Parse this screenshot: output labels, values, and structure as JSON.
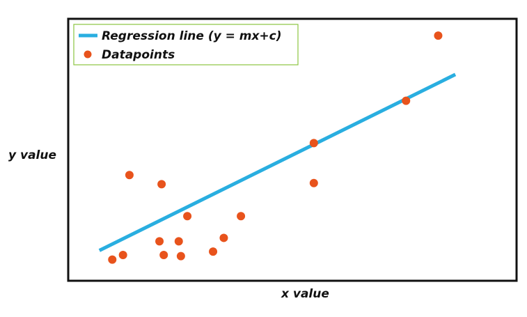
{
  "chart_data": {
    "type": "scatter",
    "title": "",
    "xlabel": "x value",
    "ylabel": "y value",
    "xlim": [
      0,
      100
    ],
    "ylim": [
      0,
      100
    ],
    "grid": false,
    "legend_position": "top-left",
    "series": [
      {
        "name": "Datapoints",
        "kind": "scatter",
        "color": "#e8531c",
        "points": [
          {
            "x": 8,
            "y": 5
          },
          {
            "x": 10.5,
            "y": 7
          },
          {
            "x": 12,
            "y": 42
          },
          {
            "x": 19,
            "y": 13
          },
          {
            "x": 19.5,
            "y": 38
          },
          {
            "x": 20,
            "y": 7
          },
          {
            "x": 23.5,
            "y": 13
          },
          {
            "x": 24,
            "y": 6.5
          },
          {
            "x": 25.5,
            "y": 24
          },
          {
            "x": 31.5,
            "y": 8.5
          },
          {
            "x": 34,
            "y": 14.5
          },
          {
            "x": 38,
            "y": 24
          },
          {
            "x": 55,
            "y": 38.5
          },
          {
            "x": 55,
            "y": 56
          },
          {
            "x": 76.5,
            "y": 74.5
          },
          {
            "x": 84,
            "y": 103
          }
        ]
      },
      {
        "name": "Regression line (y = mx+c)",
        "kind": "line",
        "color": "#29aee0",
        "points": [
          {
            "x": 5,
            "y": 9
          },
          {
            "x": 88,
            "y": 86
          }
        ]
      }
    ]
  }
}
